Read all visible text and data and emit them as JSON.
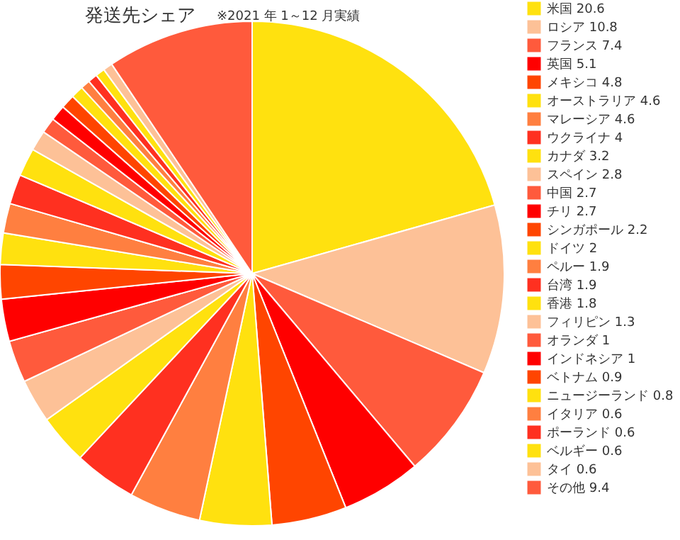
{
  "chart_data": {
    "type": "pie",
    "title": "発送先シェア",
    "subtitle": "※2021 年 1～12 月実績",
    "legend": "right",
    "categories": [
      "米国   20.6",
      "ロシア   10.8",
      "フランス   7.4",
      "英国   5.1",
      "メキシコ   4.8",
      "オーストラリア   4.6",
      "マレーシア   4.6",
      "ウクライナ   4",
      "カナダ   3.2",
      "スペイン   2.8",
      "中国   2.7",
      "チリ   2.7",
      "シンガポール   2.2",
      "ドイツ   2",
      "ペルー   1.9",
      "台湾   1.9",
      "香港   1.8",
      "フィリピン   1.3",
      "オランダ   1",
      "インドネシア   1",
      "ベトナム   0.9",
      "ニュージーランド   0.8",
      "イタリア   0.6",
      "ポーランド   0.6",
      "ベルギー   0.6",
      "タイ   0.6",
      "その他   9.4"
    ],
    "values": [
      20.6,
      10.8,
      7.4,
      5.1,
      4.8,
      4.6,
      4.6,
      4,
      3.2,
      2.8,
      2.7,
      2.7,
      2.2,
      2,
      1.9,
      1.9,
      1.8,
      1.3,
      1,
      1,
      0.9,
      0.8,
      0.6,
      0.6,
      0.6,
      0.6,
      9.4
    ],
    "colors": [
      "#ffe10f",
      "#fdc197",
      "#ff5a3c",
      "#ff0000",
      "#ff4500",
      "#ffe10f",
      "#ff7f40",
      "#ff3020",
      "#ffe10f",
      "#fdc197",
      "#ff5a3c",
      "#ff0000",
      "#ff4500",
      "#ffe10f",
      "#ff7f40",
      "#ff3020",
      "#ffe10f",
      "#fdc197",
      "#ff5a3c",
      "#ff0000",
      "#ff4500",
      "#ffe10f",
      "#ff7f40",
      "#ff3020",
      "#ffe10f",
      "#fdc197",
      "#ff5a3c"
    ]
  }
}
